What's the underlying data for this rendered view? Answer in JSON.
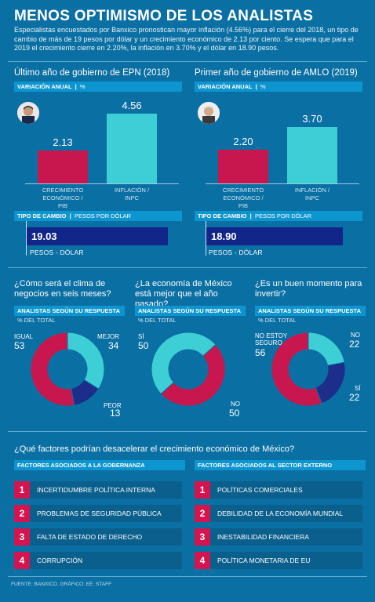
{
  "title": "MENOS OPTIMISMO DE LOS ANALISTAS",
  "intro": "Especialistas encuestados por Banxico pronostican mayor inflación (4.56%) para el cierre del 2018, un tipo de cambio de más de 19 pesos por dólar y un crecimiento económico de 2.13 por ciento. Se espera que para el 2019 el crecimiento cierre en 2.20%, la inflación en 3.70% y el dólar en 18.90 pesos.",
  "colors": {
    "background": "#0a6fa3",
    "crimson": "#c8174f",
    "turquoise": "#3ecfd6",
    "navy": "#1d2d8a",
    "tag": "#0d95cf"
  },
  "epn": {
    "title": "Último año de gobierno de EPN (2018)",
    "tag_label": "VARIACIÓN ANUAL",
    "tag_unit": "%",
    "fx_tag_label": "TIPO DE CAMBIO",
    "fx_tag_unit": "PESOS POR DÓLAR",
    "fx_value": "19.03",
    "fx_label": "PESOS - DÓLAR"
  },
  "amlo": {
    "title": "Primer año de gobierno de AMLO (2019)",
    "tag_label": "VARIACIÓN ANUAL",
    "tag_unit": "%",
    "fx_tag_label": "TIPO DE CAMBIO",
    "fx_tag_unit": "PESOS POR DÓLAR",
    "fx_value": "18.90",
    "fx_label": "PESOS - DÓLAR"
  },
  "chart_data": [
    {
      "type": "bar",
      "categories": [
        "CRECIMIENTO ECONÓMICO / PIB",
        "INFLACIÓN / INPC"
      ],
      "values": [
        2.13,
        4.56
      ],
      "value_labels": [
        "2.13",
        "4.56"
      ],
      "title": "Último año de gobierno de EPN (2018)",
      "ylabel": "VARIACIÓN ANUAL | %",
      "colors": [
        "#c8174f",
        "#3ecfd6"
      ],
      "ylim": [
        0,
        5
      ]
    },
    {
      "type": "bar",
      "categories": [
        "CRECIMIENTO ECONÓMICO / PIB",
        "INFLACIÓN / INPC"
      ],
      "values": [
        2.2,
        3.7
      ],
      "value_labels": [
        "2.20",
        "3.70"
      ],
      "title": "Primer año de gobierno de AMLO (2019)",
      "ylabel": "VARIACIÓN ANUAL | %",
      "colors": [
        "#c8174f",
        "#3ecfd6"
      ],
      "ylim": [
        0,
        5
      ]
    },
    {
      "type": "pie",
      "title": "¿Cómo será el clima de negocios en seis meses?",
      "subtitle": "ANALISTAS SEGÚN SU RESPUESTA",
      "unit": "% DEL TOTAL",
      "slices": [
        {
          "label": "MEJOR",
          "value": 34,
          "color": "#3ecfd6"
        },
        {
          "label": "PEOR",
          "value": 13,
          "color": "#1d2d8a"
        },
        {
          "label": "IGUAL",
          "value": 53,
          "color": "#c8174f"
        }
      ]
    },
    {
      "type": "pie",
      "title": "¿La economía de México está mejor que el año pasado?",
      "subtitle": "ANALISTAS SEGÚN SU RESPUESTA",
      "unit": "% DEL TOTAL",
      "slices": [
        {
          "label": "SÍ",
          "value": 50,
          "color": "#c8174f"
        },
        {
          "label": "NO",
          "value": 50,
          "color": "#3ecfd6"
        }
      ]
    },
    {
      "type": "pie",
      "title": "¿Es un buen momento para invertir?",
      "subtitle": "ANALISTAS SEGÚN SU RESPUESTA",
      "unit": "% DEL TOTAL",
      "slices": [
        {
          "label": "NO",
          "value": 22,
          "color": "#3ecfd6"
        },
        {
          "label": "SÍ",
          "value": 22,
          "color": "#1d2d8a"
        },
        {
          "label": "NO ESTOY SEGURO",
          "value": 56,
          "color": "#c8174f"
        }
      ]
    }
  ],
  "donut_text": {
    "d1": {
      "igual_l": "IGUAL",
      "igual_v": "53",
      "mejor_l": "MEJOR",
      "mejor_v": "34",
      "peor_l": "PEOR",
      "peor_v": "13"
    },
    "d2": {
      "si_l": "SÍ",
      "si_v": "50",
      "no_l": "NO",
      "no_v": "50"
    },
    "d3": {
      "ns_l1": "NO ESTOY",
      "ns_l2": "SEGURO",
      "ns_v": "56",
      "no_l": "NO",
      "no_v": "22",
      "si_l": "SÍ",
      "si_v": "22"
    }
  },
  "factors": {
    "title": "¿Qué factores podrían desacelerar el crecimiento económico de México?",
    "left_header": "FACTORES ASOCIADOS A LA GOBERNANZA",
    "right_header": "FACTORES ASOCIADOS AL SECTOR EXTERNO",
    "left": [
      {
        "n": "1",
        "text": "INCERTIDUMBRE POLÍTICA INTERNA"
      },
      {
        "n": "2",
        "text": "PROBLEMAS DE SEGURIDAD PÚBLICA"
      },
      {
        "n": "3",
        "text": "FALTA DE ESTADO DE DERECHO"
      },
      {
        "n": "4",
        "text": "CORRUPCIÓN"
      }
    ],
    "right": [
      {
        "n": "1",
        "text": "POLÍTICAS COMERCIALES"
      },
      {
        "n": "2",
        "text": "DEBILIDAD DE LA ECONOMÍA MUNDIAL"
      },
      {
        "n": "3",
        "text": "INESTABILIDAD FINANCIERA"
      },
      {
        "n": "4",
        "text": "POLÍTICA MONETARIA DE EU"
      }
    ]
  },
  "source": "FUENTE: BANXICO. GRÁFICO: EE: STAFF"
}
